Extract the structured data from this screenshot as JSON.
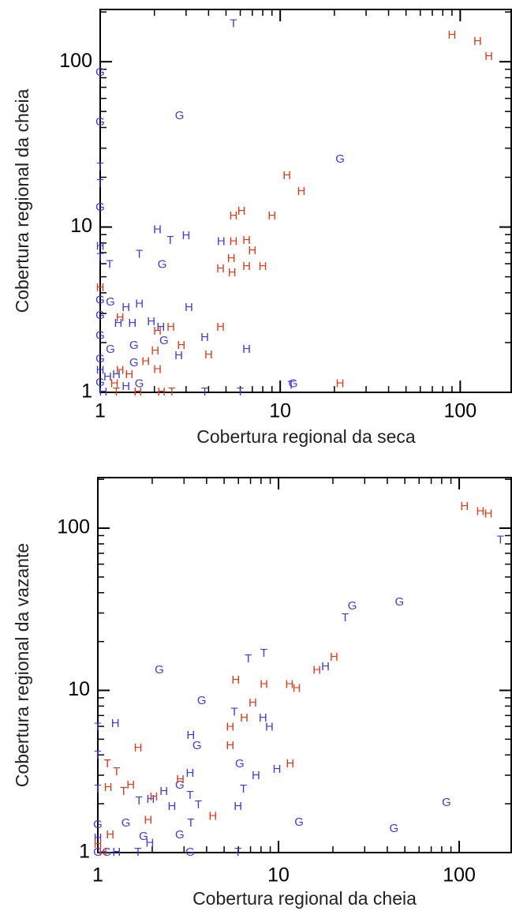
{
  "chart_data": [
    {
      "type": "scatter",
      "x_label": "Cobertura regional da seca",
      "y_label": "Cobertura regional da cheia",
      "log_x": true,
      "log_y": true,
      "xlim": [
        1,
        192
      ],
      "ylim": [
        1,
        207
      ],
      "xticks": [
        1,
        10,
        100
      ],
      "yticks": [
        1,
        10,
        100
      ],
      "xticks_minor": [
        2,
        3,
        4,
        5,
        6,
        7,
        8,
        9,
        20,
        30,
        40,
        50,
        60,
        70,
        80,
        90
      ],
      "yticks_minor": [
        2,
        3,
        4,
        5,
        6,
        7,
        8,
        9,
        20,
        30,
        40,
        50,
        60,
        70,
        80,
        90,
        200
      ],
      "series": [
        {
          "marker": "H",
          "color": "#3c3cd6",
          "x": [
            2.08,
            3.0,
            4.7,
            1,
            1.39,
            1.65,
            3.11,
            1.26,
            1.51,
            1.92,
            2.17,
            3.81,
            6.5,
            2.73,
            1,
            1.23,
            1.1,
            1.39,
            1.04
          ],
          "y": [
            9.6,
            8.8,
            8.1,
            7.6,
            3.24,
            3.4,
            3.24,
            2.6,
            2.6,
            2.66,
            2.46,
            2.13,
            1.81,
            1.66,
            1.35,
            1.27,
            1.23,
            1.08,
            1
          ]
        },
        {
          "marker": "T",
          "color": "#3c3cd6",
          "x": [
            5.5,
            1,
            1,
            2.45,
            1,
            1.13,
            1.65,
            11.5,
            3.81,
            6.0
          ],
          "y": [
            169,
            23,
            18.2,
            8.25,
            6.5,
            5.9,
            6.8,
            1.1,
            1,
            1
          ]
        },
        {
          "marker": "G",
          "color": "#3c3cd6",
          "x": [
            1,
            1,
            2.76,
            21.5,
            1,
            2.21,
            1,
            1.14,
            1,
            1,
            2.26,
            1.54,
            1.14,
            1.54,
            1,
            1,
            1.65,
            11.8
          ],
          "y": [
            86,
            43,
            47,
            25.6,
            13.1,
            5.9,
            3.6,
            3.5,
            2.9,
            2.2,
            2.04,
            1.91,
            1.81,
            1.5,
            1.59,
            1.14,
            1.12,
            1.12
          ]
        },
        {
          "marker": "H",
          "color": "#e03a1a",
          "x": [
            90,
            125,
            144,
            10.9,
            13.1,
            6.1,
            5.5,
            9.0,
            5.5,
            6.5,
            7.0,
            5.35,
            4.66,
            5.4,
            6.5,
            8.0,
            1,
            1.29,
            2.47,
            4.66,
            2.08,
            2.02,
            2.82,
            4.0,
            1.79,
            2.08,
            1.29,
            1.45,
            1.2,
            21.5,
            2.19,
            1.62
          ],
          "y": [
            144,
            132,
            107,
            20.3,
            16.3,
            12.4,
            11.6,
            11.6,
            8.1,
            8.25,
            7.15,
            6.4,
            5.55,
            5.26,
            5.74,
            5.74,
            4.27,
            2.81,
            2.46,
            2.46,
            2.33,
            1.77,
            1.91,
            1.68,
            1.53,
            1.37,
            1.35,
            1.27,
            1.12,
            1.12,
            1,
            1
          ]
        },
        {
          "marker": "T",
          "color": "#e03a1a",
          "x": [
            1.23,
            2.5
          ],
          "y": [
            1,
            1
          ]
        }
      ]
    },
    {
      "type": "scatter",
      "x_label": "Cobertura regional da cheia",
      "y_label": "Cobertura regional da vazante",
      "log_x": true,
      "log_y": true,
      "xlim": [
        1,
        194
      ],
      "ylim": [
        1,
        205
      ],
      "xticks": [
        1,
        10,
        100
      ],
      "yticks": [
        1,
        10,
        100
      ],
      "xticks_minor": [
        2,
        3,
        4,
        5,
        6,
        7,
        8,
        9,
        20,
        30,
        40,
        50,
        60,
        70,
        80,
        90
      ],
      "yticks_minor": [
        2,
        3,
        4,
        5,
        6,
        7,
        8,
        9,
        20,
        30,
        40,
        50,
        60,
        70,
        80,
        90,
        200
      ],
      "series": [
        {
          "marker": "H",
          "color": "#3c3cd6",
          "x": [
            18.2,
            8.2,
            8.9,
            1.25,
            3.27,
            9.8,
            7.5,
            3.24,
            2.32,
            1.96,
            5.97,
            2.57,
            1.94,
            1,
            1.27
          ],
          "y": [
            13.9,
            6.7,
            5.9,
            6.2,
            5.25,
            3.24,
            2.97,
            3.07,
            2.37,
            2.12,
            1.92,
            1.92,
            1.14,
            1.22,
            1
          ]
        },
        {
          "marker": "T",
          "color": "#3c3cd6",
          "x": [
            169,
            23.4,
            8.3,
            6.8,
            5.7,
            1,
            1,
            6.4,
            1,
            3.24,
            1.69,
            3.6,
            3.27,
            1.67,
            5.97
          ],
          "y": [
            84,
            27.9,
            16.8,
            15.6,
            7.3,
            5.9,
            3.97,
            2.45,
            2.45,
            2.24,
            2.07,
            1.96,
            1.51,
            1,
            1
          ]
        },
        {
          "marker": "G",
          "color": "#3c3cd6",
          "x": [
            46.7,
            25.6,
            2.19,
            3.76,
            3.54,
            6.1,
            2.84,
            85,
            13,
            43.5,
            2.84,
            1.79,
            1.43,
            1,
            1,
            1.12,
            3.24
          ],
          "y": [
            34.9,
            33,
            13.3,
            8.6,
            4.54,
            3.51,
            2.59,
            2.03,
            1.53,
            1.4,
            1.28,
            1.25,
            1.51,
            1.48,
            1,
            1,
            1
          ]
        },
        {
          "marker": "H",
          "color": "#e03a1a",
          "x": [
            107,
            131,
            145,
            20.3,
            16.3,
            5.8,
            8.3,
            11.5,
            12.6,
            7.2,
            6.46,
            5.4,
            5.4,
            1.67,
            11.6,
            2.86,
            1.52,
            1.14,
            2.04,
            4.33,
            1.9,
            1.17,
            1,
            1.07
          ],
          "y": [
            135,
            126,
            122,
            15.9,
            13.2,
            11.5,
            10.8,
            10.8,
            10.2,
            8.3,
            6.7,
            5.9,
            4.54,
            4.39,
            3.51,
            2.8,
            2.59,
            2.5,
            2.19,
            1.66,
            1.57,
            1.28,
            1.12,
            1
          ]
        },
        {
          "marker": "T",
          "color": "#e03a1a",
          "x": [
            1.13,
            1.27,
            1.39
          ],
          "y": [
            3.51,
            3.13,
            2.37
          ]
        }
      ]
    }
  ]
}
